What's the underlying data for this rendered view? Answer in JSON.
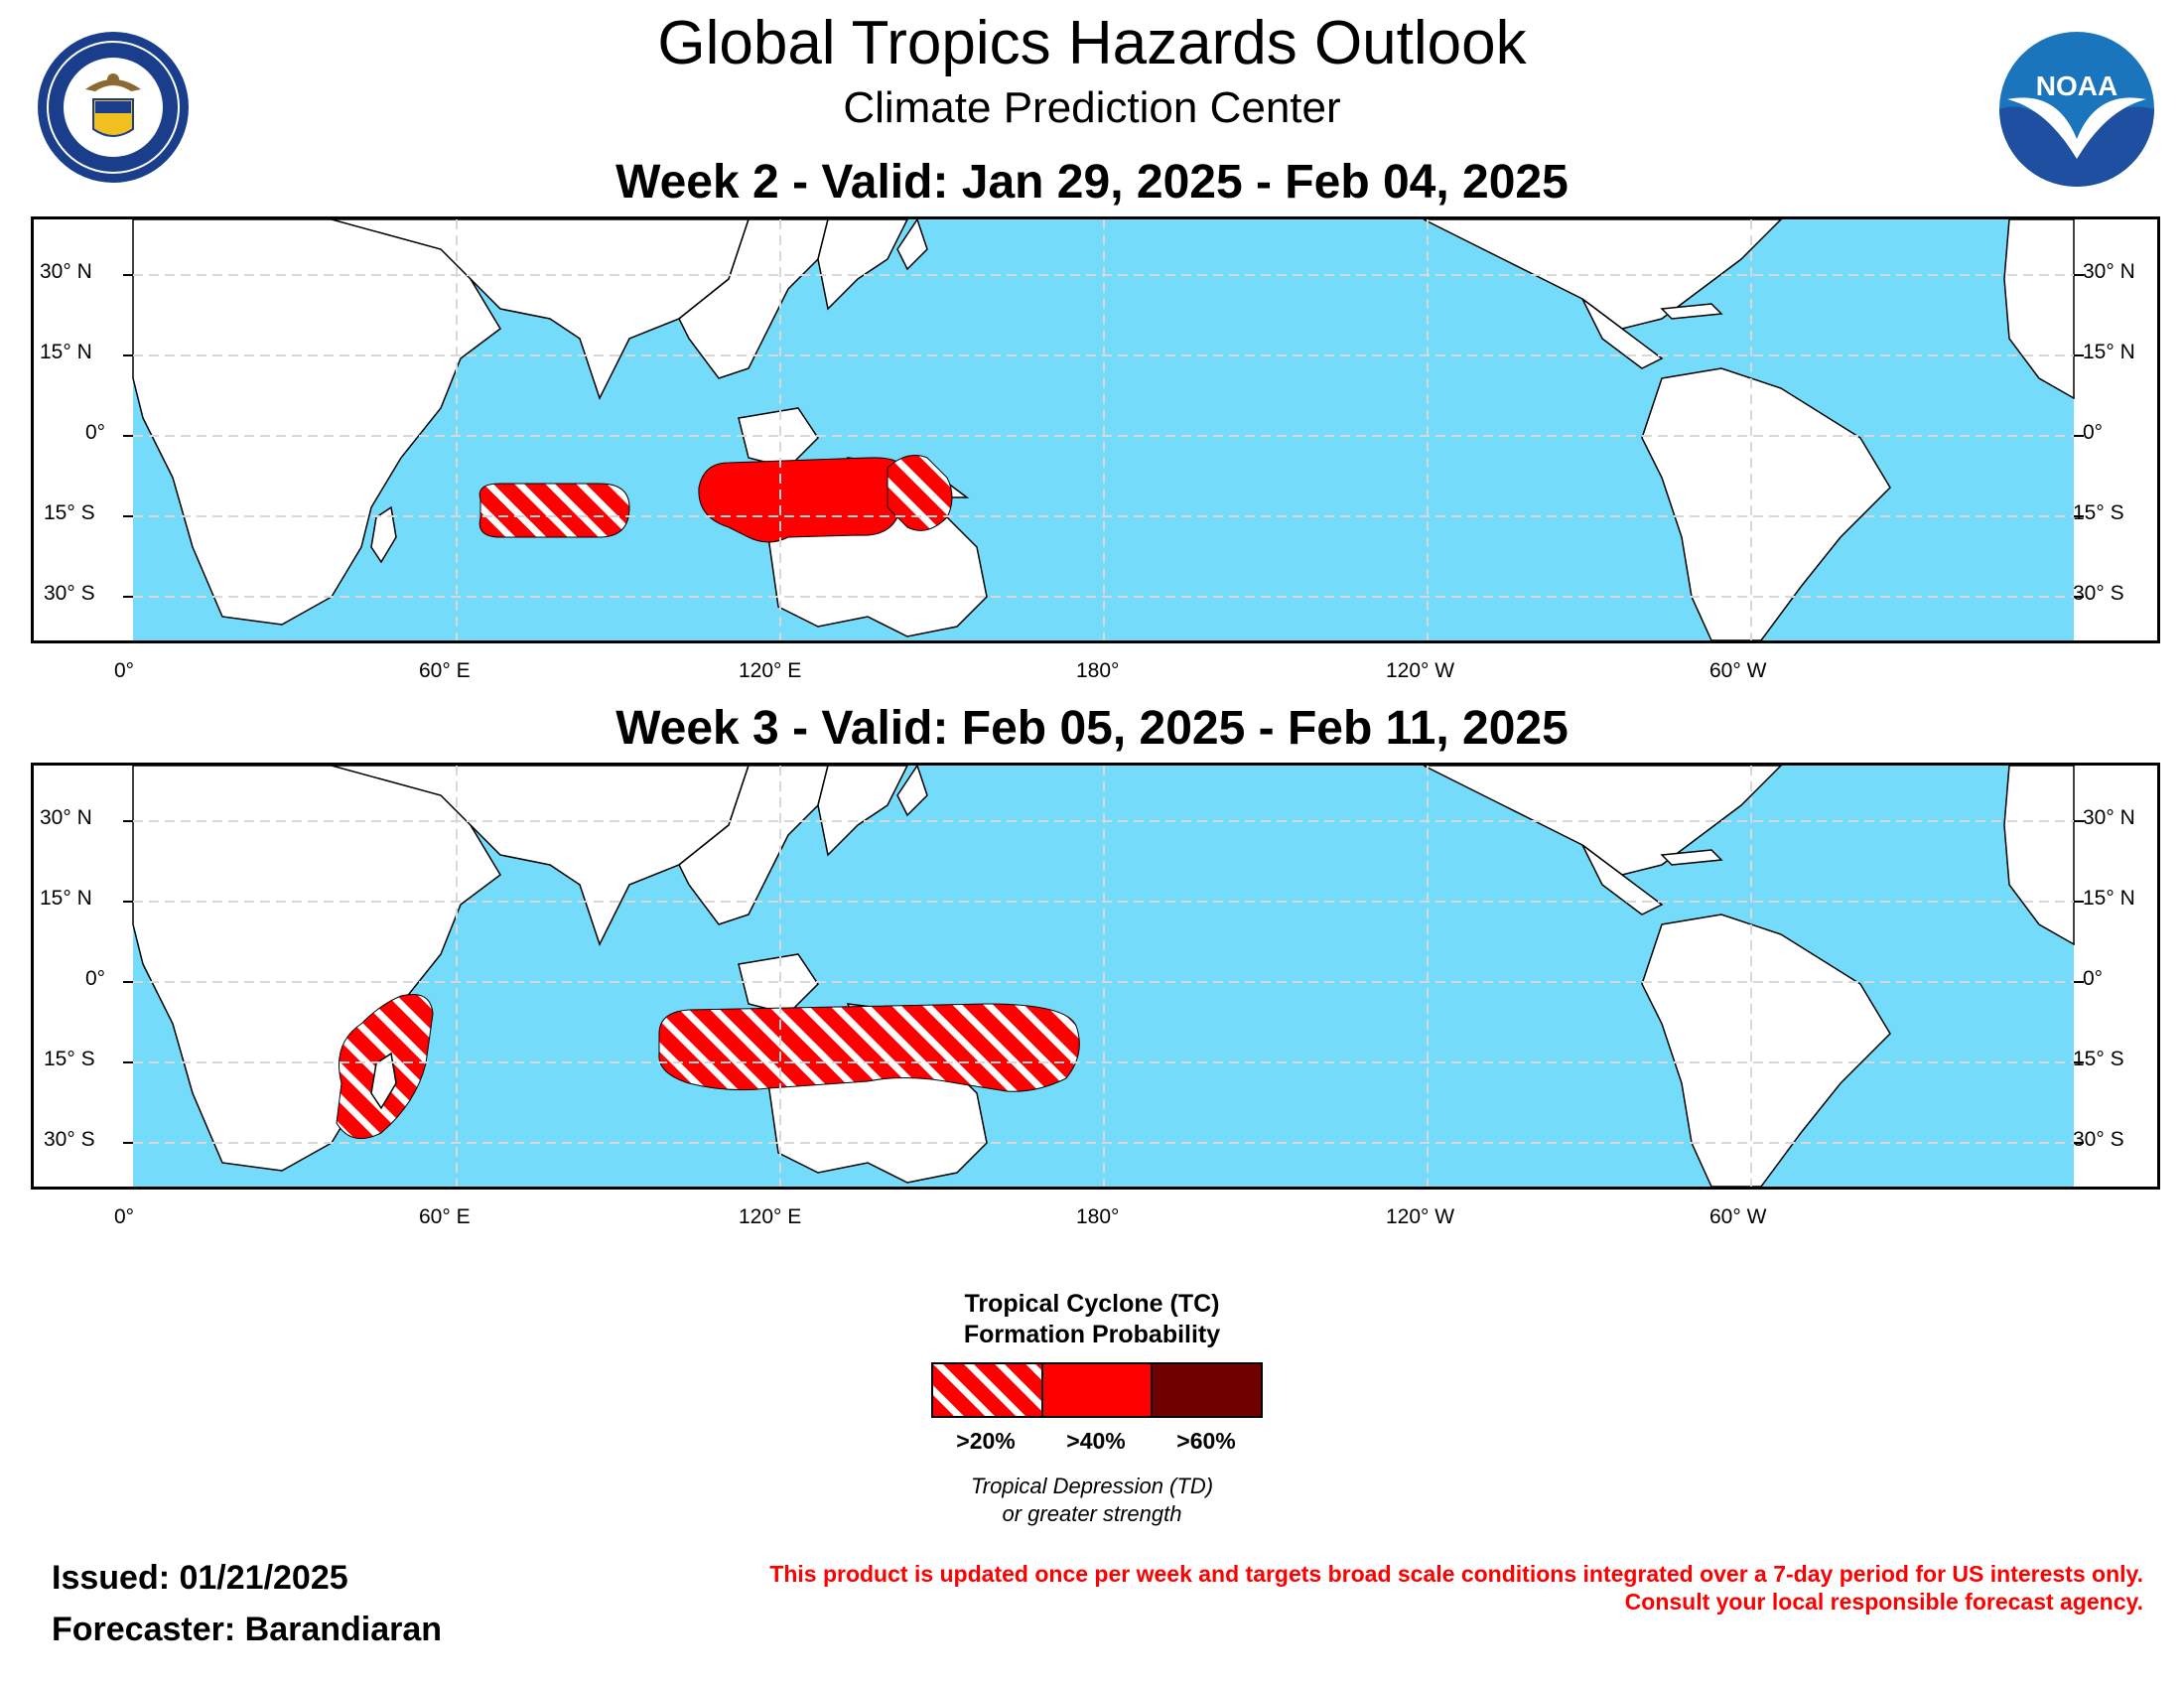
{
  "header": {
    "title": "Global Tropics Hazards Outlook",
    "subtitle": "Climate Prediction Center",
    "left_logo": "doc-seal-icon",
    "left_logo_text": "DEPARTMENT OF COMMERCE · UNITED STATES OF AMERICA",
    "right_logo": "noaa-logo-icon",
    "right_logo_text": "NOAA"
  },
  "maps": [
    {
      "title": "Week 2 - Valid: Jan 29, 2025 - Feb 04, 2025",
      "hazards": [
        {
          "region": "South Indian Ocean",
          "category": ">20%"
        },
        {
          "region": "Northern Australia (Timor / Arafura Sea)",
          "category": ">40%"
        },
        {
          "region": "Gulf of Carpentaria / Coral Sea",
          "category": ">20%"
        }
      ]
    },
    {
      "title": "Week 3 - Valid: Feb 05, 2025 - Feb 11, 2025",
      "hazards": [
        {
          "region": "Madagascar / Mozambique Channel",
          "category": ">20%"
        },
        {
          "region": "Northern Australia to Coral Sea",
          "category": ">20%"
        }
      ]
    }
  ],
  "axes": {
    "lat_left": [
      "30° N",
      "15° N",
      "0°",
      "15° S",
      "30° S"
    ],
    "lat_right": [
      "30° N",
      "15° N",
      "0°",
      "15° S",
      "30° S"
    ],
    "lon": [
      "0°",
      "60° E",
      "120° E",
      "180°",
      "120° W",
      "60° W"
    ]
  },
  "legend": {
    "title_line1": "Tropical Cyclone (TC)",
    "title_line2": "Formation Probability",
    "categories": [
      {
        "label": ">20%",
        "color": "#ff0000",
        "style": "hatched"
      },
      {
        "label": ">40%",
        "color": "#ff0000",
        "style": "solid"
      },
      {
        "label": ">60%",
        "color": "#700000",
        "style": "solid"
      }
    ],
    "note_line1": "Tropical Depression (TD)",
    "note_line2": "or greater strength"
  },
  "footer": {
    "issued": "Issued: 01/21/2025",
    "forecaster": "Forecaster: Barandiaran",
    "disclaimer_line1": "This product is updated once per week and targets broad scale conditions integrated over a 7-day period for US interests only.",
    "disclaimer_line2": "Consult your local responsible forecast agency."
  },
  "colors": {
    "ocean": "#74dcfa",
    "land": "#ffffff",
    "hazard": "#ff0000",
    "hazard_high": "#700000",
    "disclaimer": "#ff0000"
  }
}
